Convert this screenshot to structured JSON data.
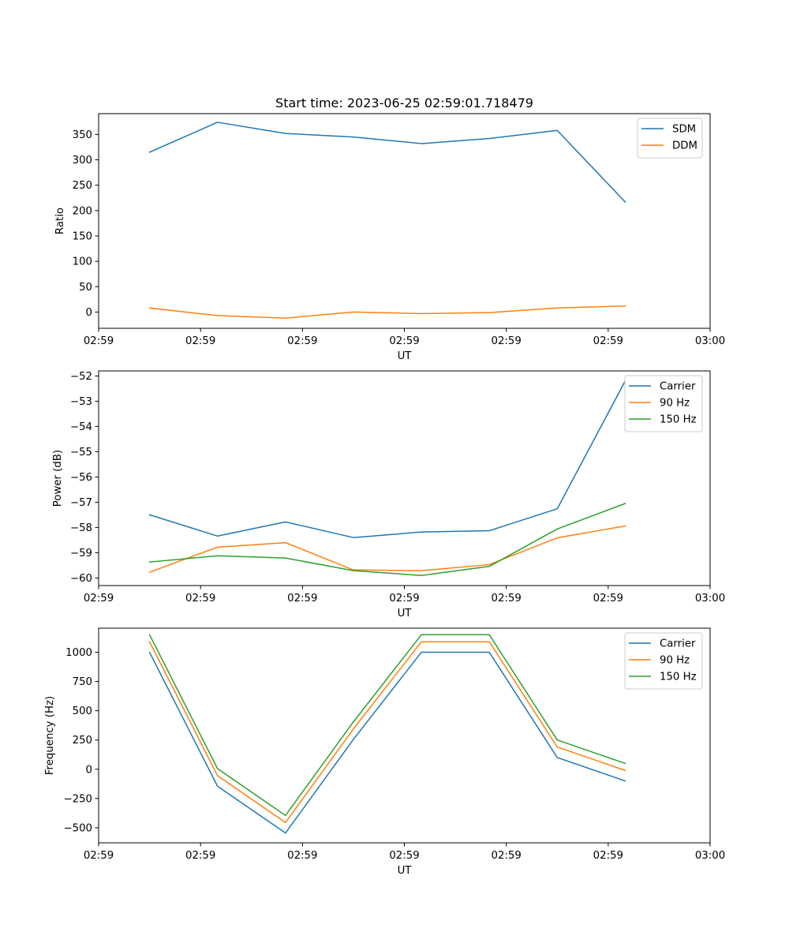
{
  "figure": {
    "title": "Start time: 2023-06-25 02:59:01.718479"
  },
  "colors": {
    "series1": "#1f77b4",
    "series2": "#ff7f0e",
    "series3": "#2ca02c",
    "axes_edge": "#000000",
    "legend_edge": "#cccccc",
    "background": "#ffffff"
  },
  "chart_data": [
    {
      "type": "line",
      "title": "Start time: 2023-06-25 02:59:01.718479",
      "xlabel": "UT",
      "ylabel": "Ratio",
      "x_tick_labels": [
        "02:59",
        "02:59",
        "02:59",
        "02:59",
        "02:59",
        "02:59",
        "03:00"
      ],
      "y_ticks": [
        0,
        50,
        100,
        150,
        200,
        250,
        300,
        350
      ],
      "ylim": [
        -32,
        391
      ],
      "x": [
        1,
        2,
        3,
        4,
        5,
        6,
        7,
        8
      ],
      "xlim": [
        0.25,
        9.25
      ],
      "x_tick_positions": [
        0.25,
        1.75,
        3.25,
        4.75,
        6.25,
        7.75,
        9.25
      ],
      "legend_position": "top-right",
      "grid": false,
      "series": [
        {
          "name": "SDM",
          "color": "#1f77b4",
          "values": [
            315,
            374,
            352,
            345,
            332,
            342,
            358,
            217
          ]
        },
        {
          "name": "DDM",
          "color": "#ff7f0e",
          "values": [
            8,
            -7,
            -12,
            0,
            -3,
            -1,
            8,
            12
          ]
        }
      ]
    },
    {
      "type": "line",
      "title": "",
      "xlabel": "UT",
      "ylabel": "Power (dB)",
      "x_tick_labels": [
        "02:59",
        "02:59",
        "02:59",
        "02:59",
        "02:59",
        "02:59",
        "03:00"
      ],
      "y_ticks": [
        -60,
        -59,
        -58,
        -57,
        -56,
        -55,
        -54,
        -53,
        -52
      ],
      "ylim": [
        -60.3,
        -51.8
      ],
      "x": [
        1,
        2,
        3,
        4,
        5,
        6,
        7,
        8
      ],
      "xlim": [
        0.25,
        9.25
      ],
      "x_tick_positions": [
        0.25,
        1.75,
        3.25,
        4.75,
        6.25,
        7.75,
        9.25
      ],
      "legend_position": "top-right",
      "grid": false,
      "series": [
        {
          "name": "Carrier",
          "color": "#1f77b4",
          "values": [
            -57.5,
            -58.34,
            -57.78,
            -58.4,
            -58.18,
            -58.13,
            -57.26,
            -52.2
          ]
        },
        {
          "name": "90 Hz",
          "color": "#ff7f0e",
          "values": [
            -59.77,
            -58.78,
            -58.6,
            -59.68,
            -59.71,
            -59.47,
            -58.41,
            -57.94
          ]
        },
        {
          "name": "150 Hz",
          "color": "#2ca02c",
          "values": [
            -59.37,
            -59.12,
            -59.21,
            -59.71,
            -59.9,
            -59.54,
            -58.06,
            -57.05
          ]
        }
      ]
    },
    {
      "type": "line",
      "title": "",
      "xlabel": "UT",
      "ylabel": "Frequency (Hz)",
      "x_tick_labels": [
        "02:59",
        "02:59",
        "02:59",
        "02:59",
        "02:59",
        "02:59",
        "03:00"
      ],
      "y_ticks": [
        -500,
        -250,
        0,
        250,
        500,
        750,
        1000
      ],
      "ylim": [
        -629,
        1206
      ],
      "x": [
        1,
        2,
        3,
        4,
        5,
        6,
        7,
        8
      ],
      "xlim": [
        0.25,
        9.25
      ],
      "x_tick_positions": [
        0.25,
        1.75,
        3.25,
        4.75,
        6.25,
        7.75,
        9.25
      ],
      "legend_position": "top-right",
      "grid": false,
      "series": [
        {
          "name": "Carrier",
          "color": "#1f77b4",
          "values": [
            1000,
            -145,
            -545,
            255,
            1000,
            1000,
            100,
            -100
          ]
        },
        {
          "name": "90 Hz",
          "color": "#ff7f0e",
          "values": [
            1090,
            -55,
            -455,
            345,
            1090,
            1090,
            190,
            -10
          ]
        },
        {
          "name": "150 Hz",
          "color": "#2ca02c",
          "values": [
            1150,
            5,
            -395,
            405,
            1150,
            1150,
            250,
            50
          ]
        }
      ]
    }
  ]
}
